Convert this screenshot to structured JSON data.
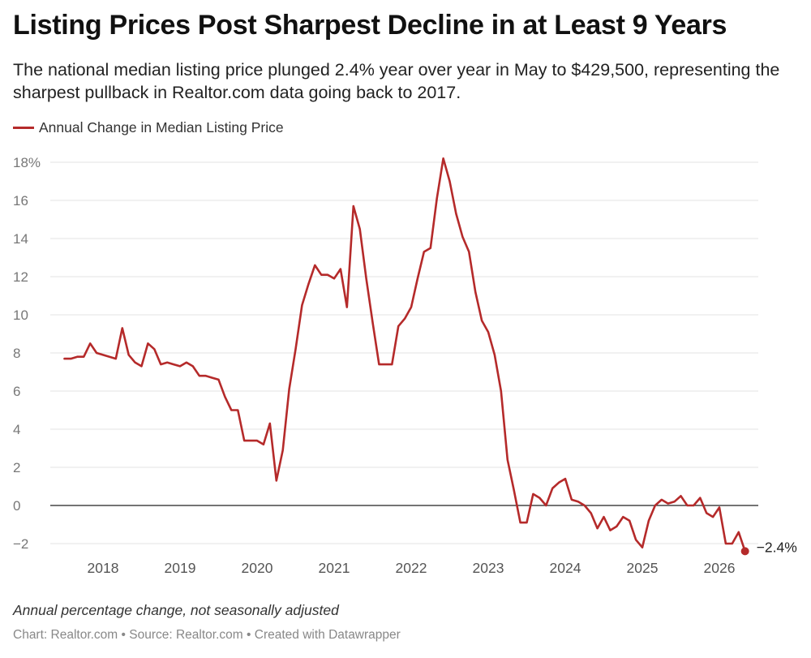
{
  "title": "Listing Prices Post Sharpest Decline in at Least 9 Years",
  "subtitle": "The national median listing price plunged 2.4% year over year in May to $429,500, representing the sharpest pullback in Realtor.com data going back to 2017.",
  "note": "Annual percentage change, not seasonally adjusted",
  "footer": {
    "chart_credit": "Chart: Realtor.com",
    "source": "Source: Realtor.com",
    "created": "Created with Datawrapper",
    "separator": " • "
  },
  "colors": {
    "series": "#b52a2a",
    "grid": "#e3e3e3",
    "zero_line": "#222222",
    "tick_text": "#777777"
  },
  "chart_data": {
    "type": "line",
    "title": "Listing Prices Post Sharpest Decline in at Least 9 Years",
    "xlabel": "",
    "ylabel": "",
    "ylim": [
      -2,
      18
    ],
    "yticks": [
      -2,
      0,
      2,
      4,
      6,
      8,
      10,
      12,
      14,
      16,
      18
    ],
    "ytick_labels": [
      "−2",
      "0",
      "2",
      "4",
      "6",
      "8",
      "10",
      "12",
      "14",
      "16",
      "18%"
    ],
    "x_tick_labels": [
      "2018",
      "2019",
      "2020",
      "2021",
      "2022",
      "2023",
      "2024",
      "2025",
      "2026"
    ],
    "grid": true,
    "legend": "top-left",
    "series": [
      {
        "name": "Annual Change in Median Listing Price",
        "x_start": "2017-07",
        "x_end": "2026-05",
        "x_interval": "monthly",
        "values": [
          7.7,
          7.7,
          7.8,
          7.8,
          8.5,
          8.0,
          7.9,
          7.8,
          7.7,
          9.3,
          7.9,
          7.5,
          7.3,
          8.5,
          8.2,
          7.4,
          7.5,
          7.4,
          7.3,
          7.5,
          7.3,
          6.8,
          6.8,
          6.7,
          6.6,
          5.7,
          5.0,
          5.0,
          3.4,
          3.4,
          3.4,
          3.2,
          4.3,
          1.3,
          2.9,
          6.1,
          8.2,
          10.5,
          11.6,
          12.6,
          12.1,
          12.1,
          11.9,
          12.4,
          10.4,
          15.7,
          14.5,
          11.9,
          9.6,
          7.4,
          7.4,
          7.4,
          9.4,
          9.8,
          10.4,
          11.9,
          13.3,
          13.5,
          16.1,
          18.2,
          17.0,
          15.3,
          14.1,
          13.3,
          11.2,
          9.7,
          9.1,
          7.9,
          6.0,
          2.4,
          0.8,
          -0.9,
          -0.9,
          0.6,
          0.4,
          0.0,
          0.9,
          1.2,
          1.4,
          0.3,
          0.2,
          0.0,
          -0.4,
          -1.2,
          -0.6,
          -1.3,
          -1.1,
          -0.6,
          -0.8,
          -1.8,
          -2.2,
          -0.8,
          0.0,
          0.3,
          0.1,
          0.2,
          0.5,
          0.0,
          0.0,
          0.4,
          -0.4,
          -0.6,
          -0.1,
          -2.0,
          -2.0,
          -1.4,
          -2.4
        ],
        "end_label": "−2.4%"
      }
    ]
  }
}
